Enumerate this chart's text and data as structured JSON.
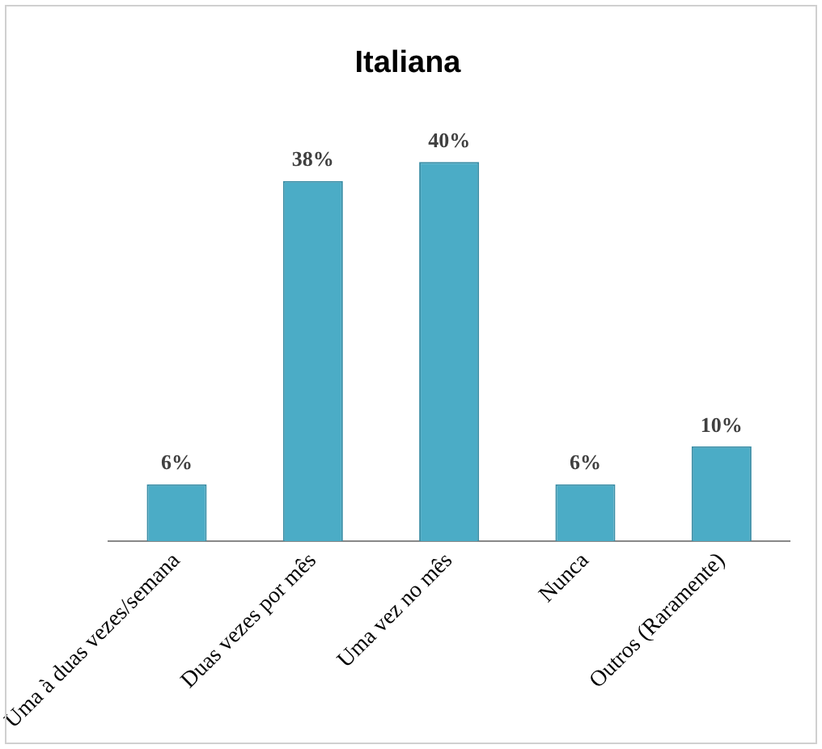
{
  "chart_data": {
    "type": "bar",
    "title": "Italiana",
    "categories": [
      "Uma à duas vezes/semana",
      "Duas vezes por mês",
      "Uma vez no mês",
      "Nunca",
      "Outros (Raramente)"
    ],
    "values": [
      6,
      38,
      40,
      6,
      10
    ],
    "color": "#4bacc6",
    "data_labels": true,
    "value_labels": [
      "6%",
      "38%",
      "40%",
      "6%",
      "10%"
    ],
    "grid": false,
    "legend": false
  }
}
